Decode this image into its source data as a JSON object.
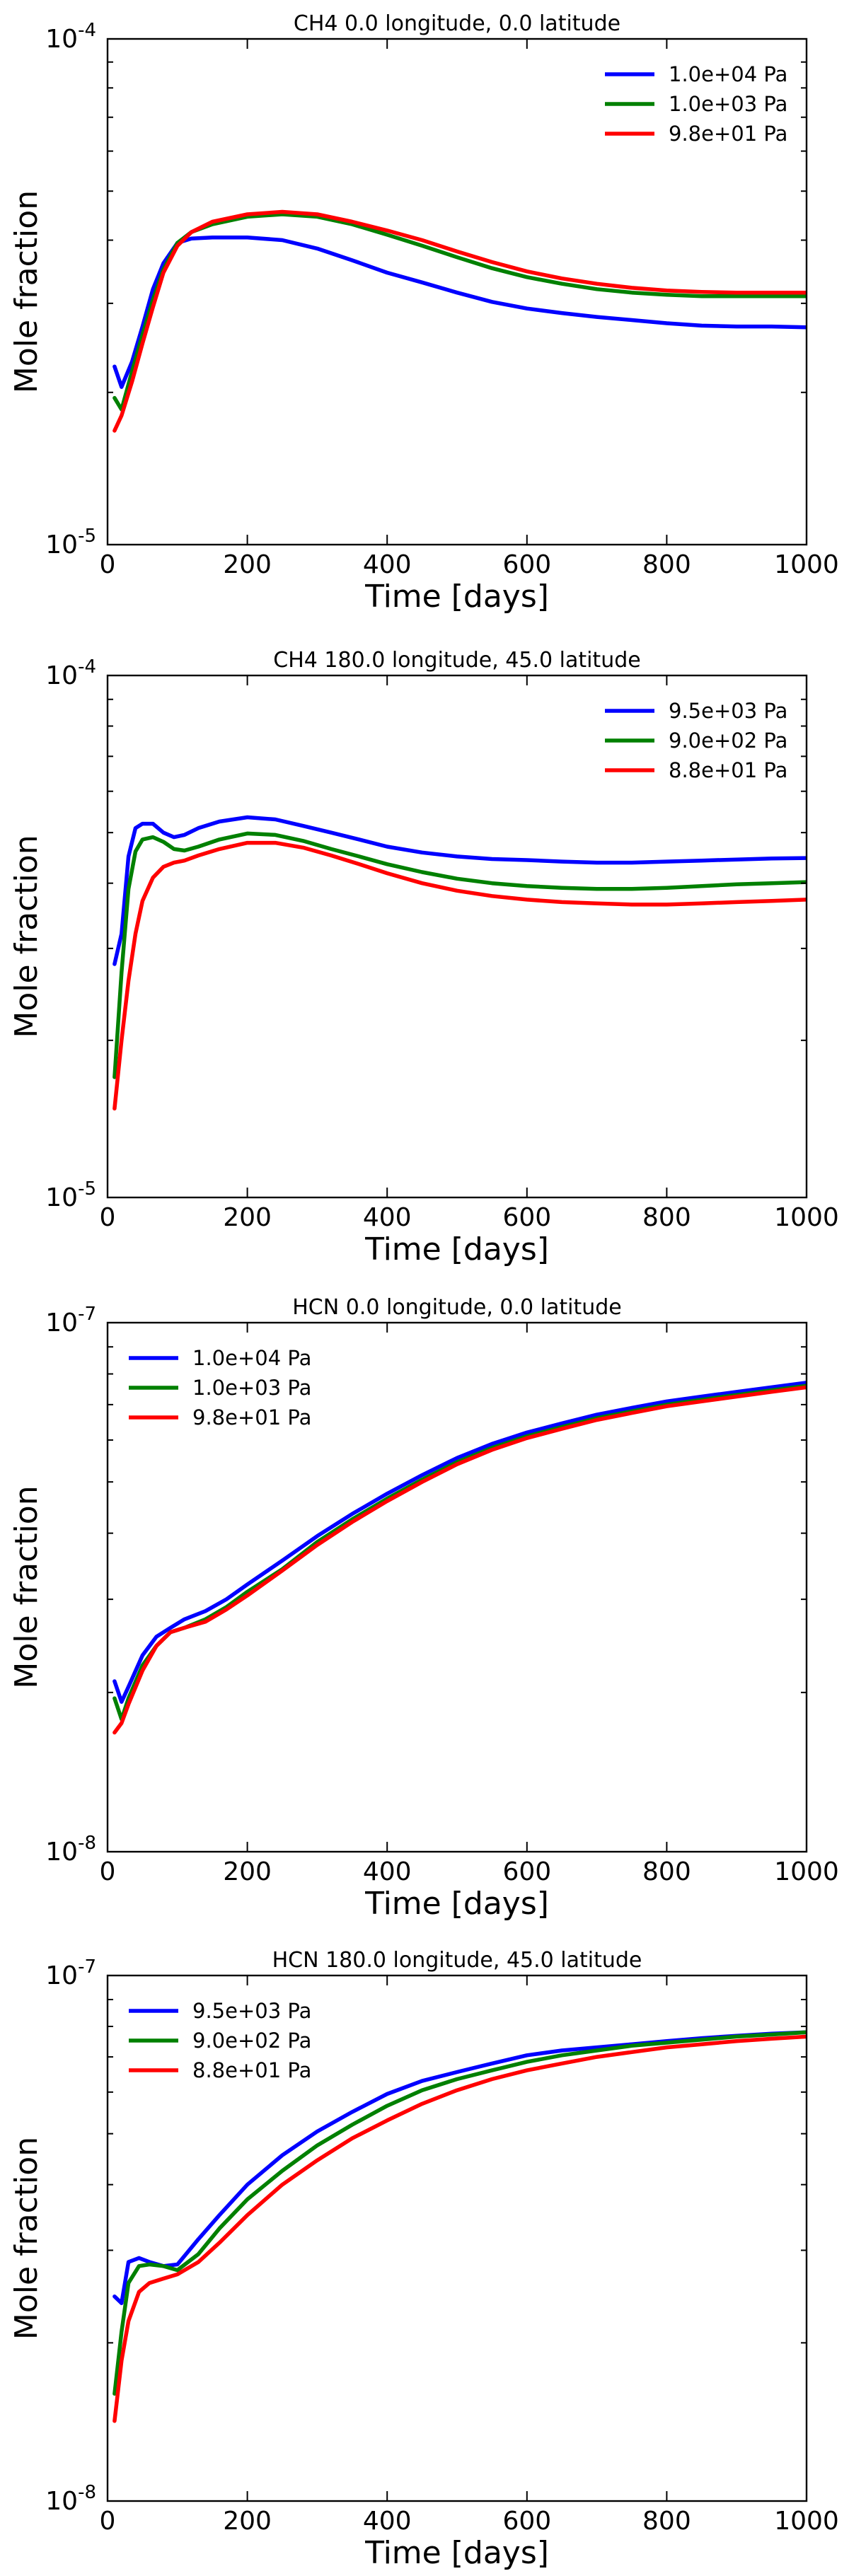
{
  "figure": {
    "description_free": true
  },
  "chart_data": [
    {
      "type": "line",
      "title": "CH4 0.0 longitude, 0.0 latitude",
      "xlabel": "Time [days]",
      "ylabel": "Mole fraction",
      "xlim": [
        0,
        1000
      ],
      "ylim": [
        1e-05,
        0.0001
      ],
      "yscale": "log",
      "xticks": [
        "0",
        "200",
        "400",
        "600",
        "800",
        "1000"
      ],
      "yticks": {
        "top": "10",
        "top_exp": "-4",
        "bottom": "10",
        "bottom_exp": "-5"
      },
      "legend_position": "top-right",
      "x": [
        10,
        20,
        35,
        50,
        65,
        80,
        100,
        120,
        150,
        200,
        250,
        300,
        350,
        400,
        450,
        500,
        550,
        600,
        650,
        700,
        750,
        800,
        850,
        900,
        950,
        1000
      ],
      "series": [
        {
          "name": "1.0e+04 Pa",
          "color": "#0000ff",
          "values": [
            2.25e-05,
            2.05e-05,
            2.3e-05,
            2.7e-05,
            3.2e-05,
            3.6e-05,
            3.95e-05,
            4.03e-05,
            4.05e-05,
            4.05e-05,
            4e-05,
            3.85e-05,
            3.65e-05,
            3.45e-05,
            3.3e-05,
            3.15e-05,
            3.02e-05,
            2.93e-05,
            2.87e-05,
            2.82e-05,
            2.78e-05,
            2.74e-05,
            2.71e-05,
            2.7e-05,
            2.7e-05,
            2.69e-05
          ]
        },
        {
          "name": "1.0e+03 Pa",
          "color": "#008000",
          "values": [
            1.95e-05,
            1.85e-05,
            2.2e-05,
            2.6e-05,
            3.05e-05,
            3.5e-05,
            3.95e-05,
            4.15e-05,
            4.3e-05,
            4.45e-05,
            4.5e-05,
            4.45e-05,
            4.3e-05,
            4.1e-05,
            3.9e-05,
            3.7e-05,
            3.52e-05,
            3.38e-05,
            3.28e-05,
            3.2e-05,
            3.15e-05,
            3.12e-05,
            3.1e-05,
            3.1e-05,
            3.1e-05,
            3.1e-05
          ]
        },
        {
          "name": "9.8e+01 Pa",
          "color": "#ff0000",
          "values": [
            1.68e-05,
            1.8e-05,
            2.1e-05,
            2.5e-05,
            2.95e-05,
            3.45e-05,
            3.9e-05,
            4.15e-05,
            4.35e-05,
            4.5e-05,
            4.55e-05,
            4.5e-05,
            4.35e-05,
            4.18e-05,
            4e-05,
            3.8e-05,
            3.62e-05,
            3.47e-05,
            3.36e-05,
            3.28e-05,
            3.22e-05,
            3.18e-05,
            3.16e-05,
            3.15e-05,
            3.15e-05,
            3.15e-05
          ]
        }
      ]
    },
    {
      "type": "line",
      "title": "CH4 180.0 longitude, 45.0 latitude",
      "xlabel": "Time [days]",
      "ylabel": "Mole fraction",
      "xlim": [
        0,
        1000
      ],
      "ylim": [
        1e-05,
        0.0001
      ],
      "yscale": "log",
      "xticks": [
        "0",
        "200",
        "400",
        "600",
        "800",
        "1000"
      ],
      "yticks": {
        "top": "10",
        "top_exp": "-4",
        "bottom": "10",
        "bottom_exp": "-5"
      },
      "legend_position": "top-right",
      "x": [
        10,
        20,
        30,
        40,
        50,
        65,
        80,
        95,
        110,
        130,
        160,
        200,
        240,
        280,
        320,
        360,
        400,
        450,
        500,
        550,
        600,
        650,
        700,
        750,
        800,
        850,
        900,
        950,
        1000
      ],
      "series": [
        {
          "name": "9.5e+03 Pa",
          "color": "#0000ff",
          "values": [
            2.8e-05,
            3.2e-05,
            4.5e-05,
            5.1e-05,
            5.2e-05,
            5.2e-05,
            5e-05,
            4.9e-05,
            4.95e-05,
            5.1e-05,
            5.25e-05,
            5.35e-05,
            5.3e-05,
            5.15e-05,
            5e-05,
            4.85e-05,
            4.7e-05,
            4.58e-05,
            4.5e-05,
            4.45e-05,
            4.43e-05,
            4.4e-05,
            4.38e-05,
            4.38e-05,
            4.4e-05,
            4.42e-05,
            4.44e-05,
            4.46e-05,
            4.47e-05
          ]
        },
        {
          "name": "9.0e+02 Pa",
          "color": "#008000",
          "values": [
            1.7e-05,
            2.7e-05,
            3.9e-05,
            4.6e-05,
            4.85e-05,
            4.9e-05,
            4.8e-05,
            4.65e-05,
            4.62e-05,
            4.7e-05,
            4.85e-05,
            4.98e-05,
            4.95e-05,
            4.82e-05,
            4.65e-05,
            4.5e-05,
            4.35e-05,
            4.2e-05,
            4.08e-05,
            4e-05,
            3.95e-05,
            3.92e-05,
            3.9e-05,
            3.9e-05,
            3.92e-05,
            3.95e-05,
            3.98e-05,
            4e-05,
            4.02e-05
          ]
        },
        {
          "name": "8.8e+01 Pa",
          "color": "#ff0000",
          "values": [
            1.48e-05,
            2e-05,
            2.6e-05,
            3.2e-05,
            3.7e-05,
            4.1e-05,
            4.3e-05,
            4.38e-05,
            4.42e-05,
            4.52e-05,
            4.65e-05,
            4.78e-05,
            4.78e-05,
            4.68e-05,
            4.52e-05,
            4.35e-05,
            4.18e-05,
            4e-05,
            3.87e-05,
            3.78e-05,
            3.72e-05,
            3.68e-05,
            3.66e-05,
            3.64e-05,
            3.64e-05,
            3.66e-05,
            3.68e-05,
            3.7e-05,
            3.72e-05
          ]
        }
      ]
    },
    {
      "type": "line",
      "title": "HCN 0.0 longitude, 0.0 latitude",
      "xlabel": "Time [days]",
      "ylabel": "Mole fraction",
      "xlim": [
        0,
        1000
      ],
      "ylim": [
        1e-08,
        1e-07
      ],
      "yscale": "log",
      "xticks": [
        "0",
        "200",
        "400",
        "600",
        "800",
        "1000"
      ],
      "yticks": {
        "top": "10",
        "top_exp": "-7",
        "bottom": "10",
        "bottom_exp": "-8"
      },
      "legend_position": "top-left",
      "x": [
        10,
        20,
        30,
        50,
        70,
        90,
        110,
        140,
        170,
        200,
        250,
        300,
        350,
        400,
        450,
        500,
        550,
        600,
        650,
        700,
        750,
        800,
        850,
        900,
        950,
        1000
      ],
      "series": [
        {
          "name": "1.0e+04 Pa",
          "color": "#0000ff",
          "values": [
            2.1e-08,
            1.92e-08,
            2.05e-08,
            2.35e-08,
            2.55e-08,
            2.65e-08,
            2.75e-08,
            2.85e-08,
            3e-08,
            3.2e-08,
            3.55e-08,
            3.95e-08,
            4.35e-08,
            4.75e-08,
            5.15e-08,
            5.55e-08,
            5.9e-08,
            6.2e-08,
            6.45e-08,
            6.7e-08,
            6.9e-08,
            7.1e-08,
            7.25e-08,
            7.4e-08,
            7.55e-08,
            7.7e-08
          ]
        },
        {
          "name": "1.0e+03 Pa",
          "color": "#008000",
          "values": [
            1.95e-08,
            1.78e-08,
            1.95e-08,
            2.25e-08,
            2.45e-08,
            2.6e-08,
            2.65e-08,
            2.75e-08,
            2.9e-08,
            3.1e-08,
            3.42e-08,
            3.85e-08,
            4.25e-08,
            4.65e-08,
            5.05e-08,
            5.45e-08,
            5.8e-08,
            6.1e-08,
            6.35e-08,
            6.6e-08,
            6.8e-08,
            7e-08,
            7.15e-08,
            7.3e-08,
            7.45e-08,
            7.6e-08
          ]
        },
        {
          "name": "9.8e+01 Pa",
          "color": "#ff0000",
          "values": [
            1.68e-08,
            1.75e-08,
            1.9e-08,
            2.2e-08,
            2.45e-08,
            2.6e-08,
            2.65e-08,
            2.72e-08,
            2.87e-08,
            3.05e-08,
            3.4e-08,
            3.8e-08,
            4.2e-08,
            4.6e-08,
            5e-08,
            5.4e-08,
            5.75e-08,
            6.05e-08,
            6.3e-08,
            6.55e-08,
            6.75e-08,
            6.95e-08,
            7.1e-08,
            7.25e-08,
            7.4e-08,
            7.55e-08
          ]
        }
      ]
    },
    {
      "type": "line",
      "title": "HCN 180.0 longitude, 45.0 latitude",
      "xlabel": "Time [days]",
      "ylabel": "Mole fraction",
      "xlim": [
        0,
        1000
      ],
      "ylim": [
        1e-08,
        1e-07
      ],
      "yscale": "log",
      "xticks": [
        "0",
        "200",
        "400",
        "600",
        "800",
        "1000"
      ],
      "yticks": {
        "top": "10",
        "top_exp": "-7",
        "bottom": "10",
        "bottom_exp": "-8"
      },
      "legend_position": "top-left",
      "x": [
        10,
        20,
        30,
        45,
        60,
        80,
        100,
        130,
        160,
        200,
        250,
        300,
        350,
        400,
        450,
        500,
        550,
        600,
        650,
        700,
        750,
        800,
        850,
        900,
        950,
        1000
      ],
      "series": [
        {
          "name": "9.5e+03 Pa",
          "color": "#0000ff",
          "values": [
            2.45e-08,
            2.38e-08,
            2.85e-08,
            2.9e-08,
            2.85e-08,
            2.8e-08,
            2.82e-08,
            3.15e-08,
            3.5e-08,
            4e-08,
            4.55e-08,
            5.05e-08,
            5.5e-08,
            5.95e-08,
            6.3e-08,
            6.55e-08,
            6.8e-08,
            7.05e-08,
            7.2e-08,
            7.3e-08,
            7.4e-08,
            7.5e-08,
            7.6e-08,
            7.68e-08,
            7.75e-08,
            7.8e-08
          ]
        },
        {
          "name": "9.0e+02 Pa",
          "color": "#008000",
          "values": [
            1.6e-08,
            2.1e-08,
            2.6e-08,
            2.8e-08,
            2.82e-08,
            2.8e-08,
            2.75e-08,
            2.95e-08,
            3.3e-08,
            3.75e-08,
            4.25e-08,
            4.75e-08,
            5.2e-08,
            5.65e-08,
            6.05e-08,
            6.35e-08,
            6.6e-08,
            6.85e-08,
            7.05e-08,
            7.2e-08,
            7.35e-08,
            7.45e-08,
            7.55e-08,
            7.65e-08,
            7.72e-08,
            7.8e-08
          ]
        },
        {
          "name": "8.8e+01 Pa",
          "color": "#ff0000",
          "values": [
            1.42e-08,
            1.85e-08,
            2.2e-08,
            2.5e-08,
            2.6e-08,
            2.65e-08,
            2.7e-08,
            2.85e-08,
            3.1e-08,
            3.5e-08,
            4e-08,
            4.45e-08,
            4.9e-08,
            5.3e-08,
            5.7e-08,
            6.05e-08,
            6.35e-08,
            6.6e-08,
            6.8e-08,
            7e-08,
            7.15e-08,
            7.3e-08,
            7.4e-08,
            7.5e-08,
            7.58e-08,
            7.65e-08
          ]
        }
      ]
    }
  ]
}
